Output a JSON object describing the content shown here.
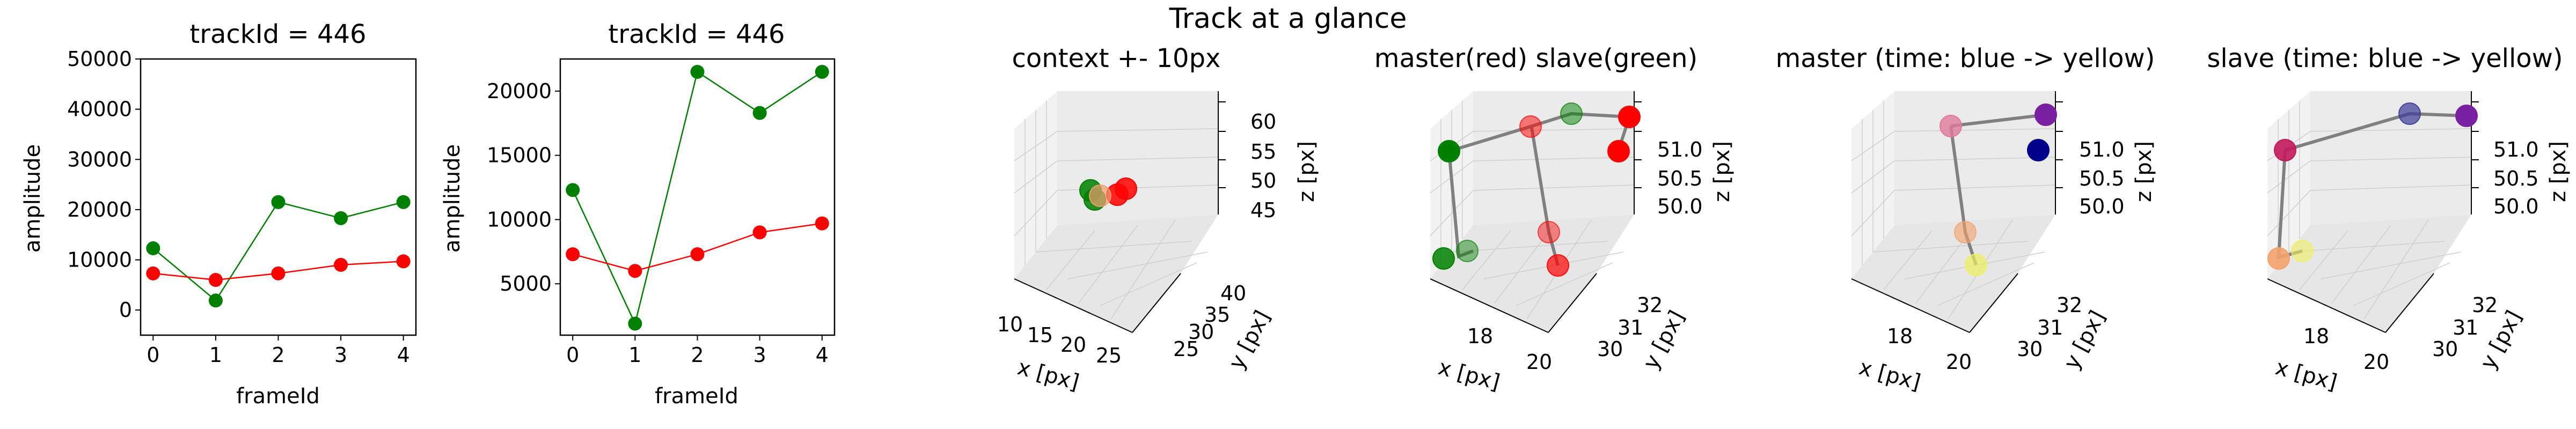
{
  "figure": {
    "suptitle": "Track at a glance"
  },
  "chart_data": [
    {
      "type": "line",
      "title": "trackId = 446",
      "xlabel": "frameId",
      "ylabel": "amplitude",
      "x": [
        0,
        1,
        2,
        3,
        4
      ],
      "xticks": [
        0,
        1,
        2,
        3,
        4
      ],
      "xlim": [
        -0.2,
        4.2
      ],
      "yticks": [
        0,
        10000,
        20000,
        30000,
        40000,
        50000
      ],
      "ylim": [
        -5000,
        50000
      ],
      "series": [
        {
          "color": "#008000",
          "values": [
            12300,
            1900,
            21500,
            18300,
            21500
          ]
        },
        {
          "color": "#ff0000",
          "values": [
            7300,
            6000,
            7300,
            9000,
            9700
          ]
        }
      ]
    },
    {
      "type": "line",
      "title": "trackId = 446",
      "xlabel": "frameId",
      "ylabel": "amplitude",
      "x": [
        0,
        1,
        2,
        3,
        4
      ],
      "xticks": [
        0,
        1,
        2,
        3,
        4
      ],
      "xlim": [
        -0.2,
        4.2
      ],
      "yticks": [
        5000,
        10000,
        15000,
        20000
      ],
      "ylim": [
        1000,
        22500
      ],
      "series": [
        {
          "color": "#008000",
          "values": [
            12300,
            1900,
            21500,
            18300,
            21500
          ]
        },
        {
          "color": "#ff0000",
          "values": [
            7300,
            6000,
            7300,
            9000,
            9700
          ]
        }
      ]
    },
    {
      "type": "scatter",
      "title": "context +- 10px",
      "xlabel": "x [px]",
      "ylabel": "y [px]",
      "zlabel": "z [px]",
      "xticks": [
        "10",
        "15",
        "20",
        "25"
      ],
      "yticks": [
        "25",
        "30",
        "35",
        "40"
      ],
      "zticks": [
        "45",
        "50",
        "55",
        "60"
      ],
      "points": [
        {
          "x": 18,
          "y": 31,
          "z": 50.3,
          "color": "#008000"
        },
        {
          "x": 19,
          "y": 31,
          "z": 50.8,
          "color": "#008000"
        },
        {
          "x": 20,
          "y": 32,
          "z": 50.5,
          "color": "#ff0000"
        },
        {
          "x": 19,
          "y": 32,
          "z": 50.9,
          "color": "#ff0000"
        }
      ]
    },
    {
      "type": "scatter",
      "title": "master(red) slave(green)",
      "xlabel": "x [px]",
      "ylabel": "y [px]",
      "zlabel": "z [px]",
      "xticks": [
        "18",
        "20"
      ],
      "yticks": [
        "30",
        "31",
        "32"
      ],
      "zticks": [
        "50.0",
        "50.5",
        "51.0"
      ],
      "series": [
        {
          "name": "master",
          "color": "#ff0000"
        },
        {
          "name": "slave",
          "color": "#008000"
        }
      ]
    },
    {
      "type": "scatter",
      "title": "master (time: blue -> yellow)",
      "xlabel": "x [px]",
      "ylabel": "y [px]",
      "zlabel": "z [px]",
      "xticks": [
        "18",
        "20"
      ],
      "yticks": [
        "30",
        "31",
        "32"
      ],
      "zticks": [
        "50.0",
        "50.5",
        "51.0"
      ],
      "colors": [
        "#00008b",
        "#7b1fa2",
        "#e07a9a",
        "#f4a36b",
        "#f0f060"
      ]
    },
    {
      "type": "scatter",
      "title": "slave (time: blue -> yellow)",
      "xlabel": "x [px]",
      "ylabel": "y [px]",
      "zlabel": "z [px]",
      "xticks": [
        "18",
        "20"
      ],
      "yticks": [
        "30",
        "31",
        "32"
      ],
      "zticks": [
        "50.0",
        "50.5",
        "51.0"
      ],
      "colors": [
        "#3a3a9a",
        "#7b1fa2",
        "#c2185b",
        "#f4a36b",
        "#f0f060"
      ]
    }
  ]
}
